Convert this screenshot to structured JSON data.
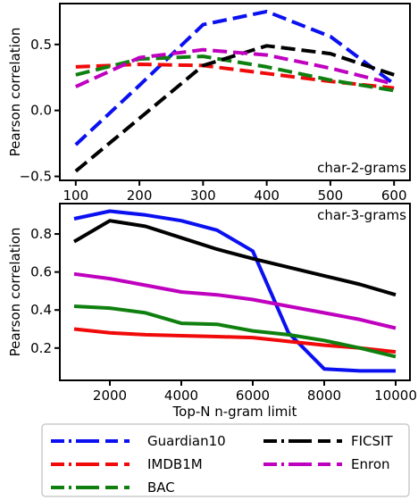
{
  "colors": {
    "Guardian10": "#0a10f0",
    "IMDB1M": "#f00a0a",
    "BAC": "#0f800f",
    "FICSIT": "#000000",
    "Enron": "#bf00bf"
  },
  "chart_data": [
    {
      "type": "line",
      "panel_label": "char-2-grams",
      "xlabel": "",
      "ylabel": "Pearson correlation",
      "xlim": [
        75,
        625
      ],
      "ylim": [
        -0.53,
        0.81
      ],
      "xticks": [
        100,
        200,
        300,
        400,
        500,
        600
      ],
      "xtick_labels": [
        "100",
        "200",
        "300",
        "400",
        "500",
        "600"
      ],
      "yticks": [
        -0.5,
        0.0,
        0.5
      ],
      "ytick_labels": [
        "−0.5",
        "0.0",
        "0.5"
      ],
      "line_style": "dashed",
      "x": [
        100,
        200,
        300,
        400,
        500,
        600
      ],
      "series": [
        {
          "key": "Guardian10",
          "values": [
            -0.26,
            0.19,
            0.65,
            0.75,
            0.56,
            0.2
          ]
        },
        {
          "key": "IMDB1M",
          "values": [
            0.33,
            0.35,
            0.34,
            0.28,
            0.22,
            0.17
          ]
        },
        {
          "key": "BAC",
          "values": [
            0.27,
            0.39,
            0.41,
            0.33,
            0.23,
            0.15
          ]
        },
        {
          "key": "FICSIT",
          "values": [
            -0.46,
            -0.06,
            0.34,
            0.49,
            0.43,
            0.27
          ]
        },
        {
          "key": "Enron",
          "values": [
            0.18,
            0.4,
            0.46,
            0.42,
            0.32,
            0.2
          ]
        }
      ]
    },
    {
      "type": "line",
      "panel_label": "char-3-grams",
      "xlabel": "Top-N n-gram limit",
      "ylabel": "Pearson correlation",
      "xlim": [
        600,
        10400
      ],
      "ylim": [
        0.03,
        0.96
      ],
      "xticks": [
        2000,
        4000,
        6000,
        8000,
        10000
      ],
      "xtick_labels": [
        "2000",
        "4000",
        "6000",
        "8000",
        "10000"
      ],
      "yticks": [
        0.2,
        0.4,
        0.6,
        0.8
      ],
      "ytick_labels": [
        "0.2",
        "0.4",
        "0.6",
        "0.8"
      ],
      "line_style": "solid",
      "x": [
        1000,
        2000,
        3000,
        4000,
        5000,
        6000,
        7000,
        8000,
        9000,
        10000
      ],
      "series": [
        {
          "key": "Guardian10",
          "values": [
            0.88,
            0.92,
            0.9,
            0.87,
            0.82,
            0.71,
            0.28,
            0.09,
            0.08,
            0.08
          ]
        },
        {
          "key": "IMDB1M",
          "values": [
            0.3,
            0.28,
            0.27,
            0.265,
            0.26,
            0.255,
            0.235,
            0.215,
            0.2,
            0.18
          ]
        },
        {
          "key": "BAC",
          "values": [
            0.42,
            0.41,
            0.385,
            0.33,
            0.325,
            0.29,
            0.27,
            0.24,
            0.2,
            0.155
          ]
        },
        {
          "key": "FICSIT",
          "values": [
            0.76,
            0.87,
            0.84,
            0.78,
            0.72,
            0.67,
            0.625,
            0.58,
            0.535,
            0.48
          ]
        },
        {
          "key": "Enron",
          "values": [
            0.59,
            0.565,
            0.53,
            0.495,
            0.48,
            0.455,
            0.42,
            0.385,
            0.35,
            0.305
          ]
        }
      ]
    }
  ],
  "legend": {
    "placement": "bottom",
    "entries": [
      {
        "key": "Guardian10",
        "label": "Guardian10"
      },
      {
        "key": "FICSIT",
        "label": "FICSIT"
      },
      {
        "key": "IMDB1M",
        "label": "IMDB1M"
      },
      {
        "key": "Enron",
        "label": "Enron"
      },
      {
        "key": "BAC",
        "label": "BAC"
      }
    ]
  }
}
